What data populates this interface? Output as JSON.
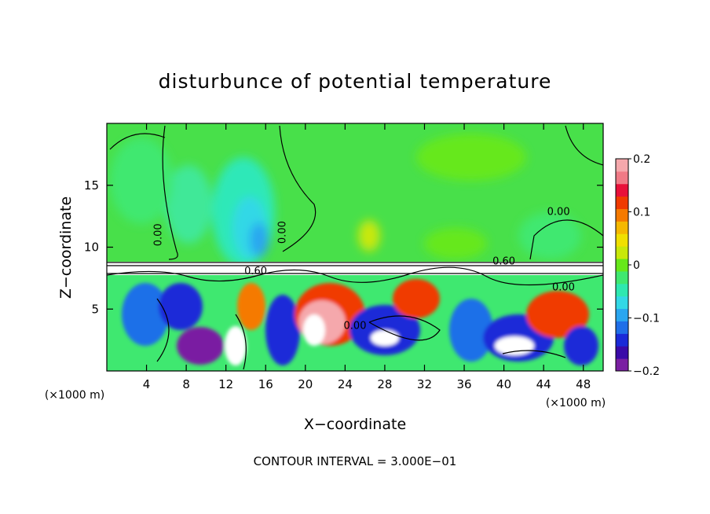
{
  "chart_data": {
    "type": "heatmap",
    "title": "disturbunce of potential temperature",
    "xlabel": "X−coordinate",
    "ylabel": "Z−coordinate",
    "x_unit_left": "(×1000 m)",
    "x_unit_right": "(×1000 m)",
    "xlim": [
      0,
      50
    ],
    "ylim": [
      0,
      20
    ],
    "x_ticks": [
      4,
      8,
      12,
      16,
      20,
      24,
      28,
      32,
      36,
      40,
      44,
      48
    ],
    "x_tick_labels": [
      "4",
      "8",
      "12",
      "16",
      "20",
      "24",
      "28",
      "32",
      "36",
      "40",
      "44",
      "48"
    ],
    "y_ticks": [
      5,
      10,
      15
    ],
    "y_tick_labels": [
      "5",
      "10",
      "15"
    ],
    "colorbar": {
      "range": [
        -0.2,
        0.2
      ],
      "tick_values": [
        0.2,
        0.1,
        0,
        -0.1,
        -0.2
      ],
      "tick_labels": [
        "0.2",
        "0.1",
        "0",
        "−0.1",
        "−0.2"
      ],
      "colors": [
        "#7a1fa2",
        "#3a0aa8",
        "#1a2ad8",
        "#1f6fe8",
        "#2aa6f0",
        "#33d8e6",
        "#2ee8b0",
        "#3fe870",
        "#66e81a",
        "#c8e80a",
        "#f0e000",
        "#f5b800",
        "#f57a00",
        "#f03a00",
        "#e8103a",
        "#f07a86",
        "#f5a8ac"
      ]
    },
    "contour_labels": [
      {
        "text": "0.00",
        "x": 5.5,
        "z": 11.0,
        "rotate": true
      },
      {
        "text": "0.00",
        "x": 18.0,
        "z": 11.2,
        "rotate": true
      },
      {
        "text": "0.00",
        "x": 45.5,
        "z": 12.6,
        "rotate": false
      },
      {
        "text": "0.60",
        "x": 40.0,
        "z": 8.6,
        "rotate": false
      },
      {
        "text": "0.60",
        "x": 15.0,
        "z": 7.8,
        "rotate": false
      },
      {
        "text": "0.00",
        "x": 25.0,
        "z": 3.4,
        "rotate": false
      },
      {
        "text": "0.00",
        "x": 46.0,
        "z": 6.5,
        "rotate": false
      }
    ],
    "footnote": "CONTOUR INTERVAL = 3.000E−01"
  }
}
